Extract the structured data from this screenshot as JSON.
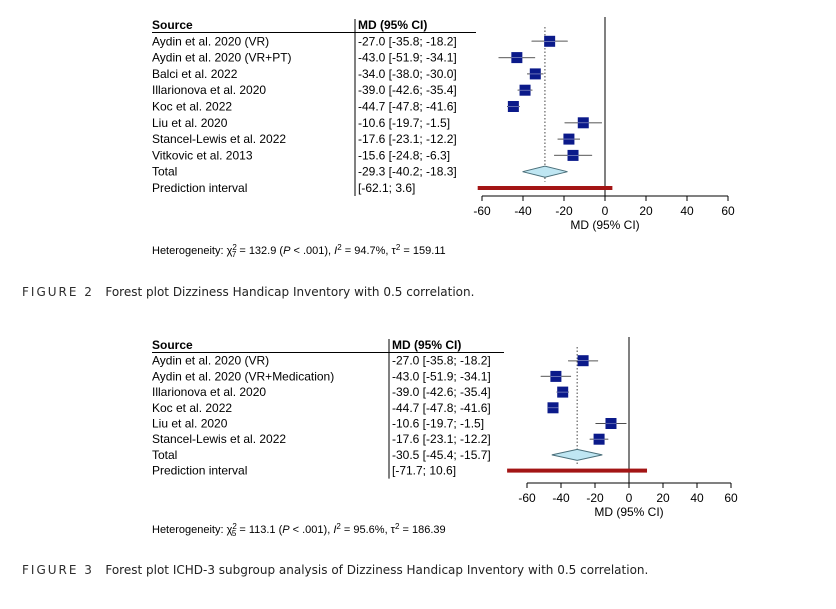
{
  "figures": [
    {
      "id": "figure-2",
      "caption_label": "FIGURE 2",
      "caption_text": "Forest plot Dizziness Handicap Inventory with 0.5 correlation.",
      "heterogeneity": {
        "prefix": "Heterogeneity: χ",
        "df": "7",
        "stat": " = 132.9 (",
        "p_label": "P",
        "p_value": " < .001), ",
        "i2_label": "I",
        "i2_value": " = 94.7%, τ",
        "tau2_value": " = 159.11"
      },
      "chart_data": {
        "type": "forest",
        "columns": [
          "Source",
          "MD (95% CI)"
        ],
        "xlabel": "MD (95% CI)",
        "xlim": [
          -60,
          60
        ],
        "ticks": [
          -60,
          -40,
          -20,
          0,
          20,
          40,
          60
        ],
        "null_line": 0,
        "studies": [
          {
            "source": "Aydin et al. 2020 (VR)",
            "ci_text": "-27.0 [-35.8; -18.2]",
            "md": -27.0,
            "lower": -35.8,
            "upper": -18.2,
            "weight": 1.0
          },
          {
            "source": "Aydin et al. 2020 (VR+PT)",
            "ci_text": "-43.0 [-51.9; -34.1]",
            "md": -43.0,
            "lower": -51.9,
            "upper": -34.1,
            "weight": 1.0
          },
          {
            "source": "Balci et al. 2022",
            "ci_text": "-34.0 [-38.0; -30.0]",
            "md": -34.0,
            "lower": -38.0,
            "upper": -30.0,
            "weight": 1.0
          },
          {
            "source": "Illarionova et al. 2020",
            "ci_text": "-39.0 [-42.6; -35.4]",
            "md": -39.0,
            "lower": -42.6,
            "upper": -35.4,
            "weight": 1.0
          },
          {
            "source": "Koc et al. 2022",
            "ci_text": "-44.7 [-47.8; -41.6]",
            "md": -44.7,
            "lower": -47.8,
            "upper": -41.6,
            "weight": 1.0
          },
          {
            "source": "Liu et al. 2020",
            "ci_text": "-10.6 [-19.7;  -1.5]",
            "md": -10.6,
            "lower": -19.7,
            "upper": -1.5,
            "weight": 1.0
          },
          {
            "source": "Stancel-Lewis et al. 2022",
            "ci_text": "-17.6 [-23.1; -12.2]",
            "md": -17.6,
            "lower": -23.1,
            "upper": -12.2,
            "weight": 1.0
          },
          {
            "source": "Vitkovic et al. 2013",
            "ci_text": "-15.6 [-24.8;  -6.3]",
            "md": -15.6,
            "lower": -24.8,
            "upper": -6.3,
            "weight": 1.0
          }
        ],
        "total": {
          "source": "Total",
          "ci_text": "-29.3 [-40.2; -18.3]",
          "md": -29.3,
          "lower": -40.2,
          "upper": -18.3
        },
        "prediction_interval": {
          "source": "Prediction interval",
          "ci_text": "[-62.1;   3.6]",
          "lower": -62.1,
          "upper": 3.6
        }
      }
    },
    {
      "id": "figure-3",
      "caption_label": "FIGURE 3",
      "caption_text": "Forest plot ICHD-3 subgroup analysis of Dizziness Handicap Inventory with 0.5 correlation.",
      "heterogeneity": {
        "prefix": "Heterogeneity: χ",
        "df": "5",
        "stat": " = 113.1 (",
        "p_label": "P",
        "p_value": " < .001), ",
        "i2_label": "I",
        "i2_value": " = 95.6%, τ",
        "tau2_value": " = 186.39"
      },
      "chart_data": {
        "type": "forest",
        "columns": [
          "Source",
          "MD (95% CI)"
        ],
        "xlabel": "MD (95% CI)",
        "xlim": [
          -60,
          60
        ],
        "ticks": [
          -60,
          -40,
          -20,
          0,
          20,
          40,
          60
        ],
        "null_line": 0,
        "studies": [
          {
            "source": "Aydin et al. 2020 (VR)",
            "ci_text": "-27.0 [-35.8; -18.2]",
            "md": -27.0,
            "lower": -35.8,
            "upper": -18.2,
            "weight": 1.0
          },
          {
            "source": "Aydin et al. 2020 (VR+Medication)",
            "ci_text": "-43.0 [-51.9; -34.1]",
            "md": -43.0,
            "lower": -51.9,
            "upper": -34.1,
            "weight": 1.0
          },
          {
            "source": "Illarionova et al. 2020",
            "ci_text": "-39.0 [-42.6; -35.4]",
            "md": -39.0,
            "lower": -42.6,
            "upper": -35.4,
            "weight": 1.0
          },
          {
            "source": "Koc et al. 2022",
            "ci_text": "-44.7 [-47.8; -41.6]",
            "md": -44.7,
            "lower": -47.8,
            "upper": -41.6,
            "weight": 1.0
          },
          {
            "source": "Liu et al. 2020",
            "ci_text": "-10.6 [-19.7;  -1.5]",
            "md": -10.6,
            "lower": -19.7,
            "upper": -1.5,
            "weight": 1.0
          },
          {
            "source": "Stancel-Lewis et al. 2022",
            "ci_text": "-17.6 [-23.1; -12.2]",
            "md": -17.6,
            "lower": -23.1,
            "upper": -12.2,
            "weight": 1.0
          }
        ],
        "total": {
          "source": "Total",
          "ci_text": "-30.5 [-45.4; -15.7]",
          "md": -30.5,
          "lower": -45.4,
          "upper": -15.7
        },
        "prediction_interval": {
          "source": "Prediction interval",
          "ci_text": "[-71.7;  10.6]",
          "lower": -71.7,
          "upper": 10.6
        }
      }
    }
  ],
  "colors": {
    "marker": "#0b1a8a",
    "diamond_fill": "#bfe6f2",
    "diamond_stroke": "#4a6f7a",
    "prediction": "#a31515",
    "axis": "#000000"
  }
}
